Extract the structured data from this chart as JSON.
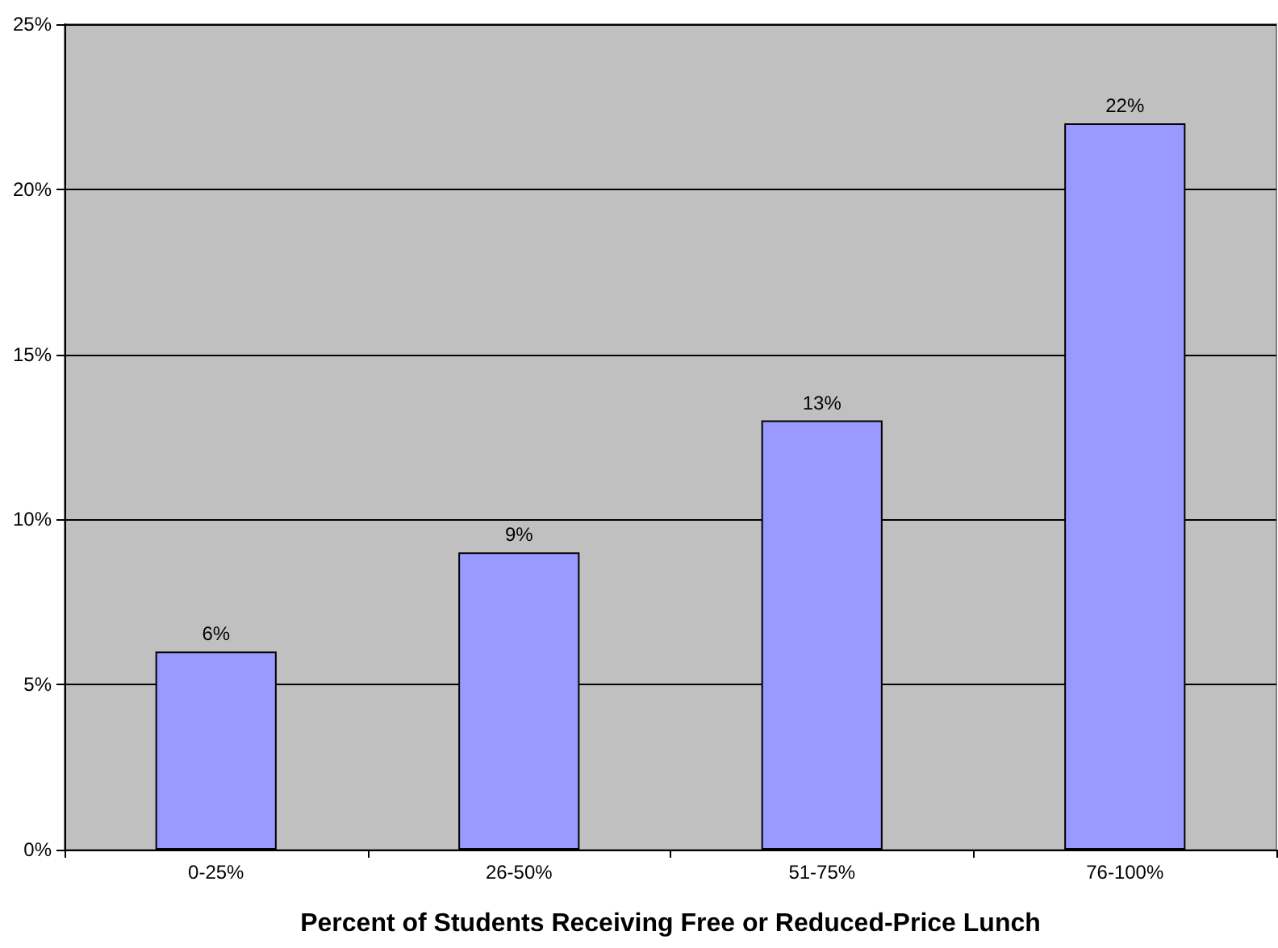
{
  "chart_data": {
    "type": "bar",
    "xlabel": "Percent of Students Receiving Free or Reduced-Price Lunch",
    "categories": [
      "0-25%",
      "26-50%",
      "51-75%",
      "76-100%"
    ],
    "values": [
      6,
      9,
      13,
      22
    ],
    "color": "#9999ff",
    "value_labels": [
      "6%",
      "9%",
      "13%",
      "22%"
    ],
    "ylim": [
      0,
      25
    ],
    "yticks": [
      {
        "value": 0,
        "label": "0%"
      },
      {
        "value": 5,
        "label": "5%"
      },
      {
        "value": 10,
        "label": "10%"
      },
      {
        "value": 15,
        "label": "15%"
      },
      {
        "value": 20,
        "label": "20%"
      },
      {
        "value": 25,
        "label": "25%"
      }
    ],
    "grid": "y"
  }
}
